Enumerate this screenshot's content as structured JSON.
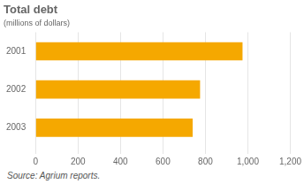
{
  "chart_data": {
    "type": "bar",
    "orientation": "horizontal",
    "title": "Total debt",
    "subtitle": "(millions of dollars)",
    "categories": [
      "2001",
      "2002",
      "2003"
    ],
    "values": [
      975,
      775,
      740
    ],
    "color": "#F5A800",
    "xlim": [
      0,
      1200
    ],
    "xticks": [
      0,
      200,
      400,
      600,
      800,
      {
        "value": 1000,
        "label": "1,000"
      },
      {
        "value": 1200,
        "label": "1,200"
      }
    ],
    "grid": true,
    "annotations": [
      "Source:  Agrium reports."
    ]
  }
}
